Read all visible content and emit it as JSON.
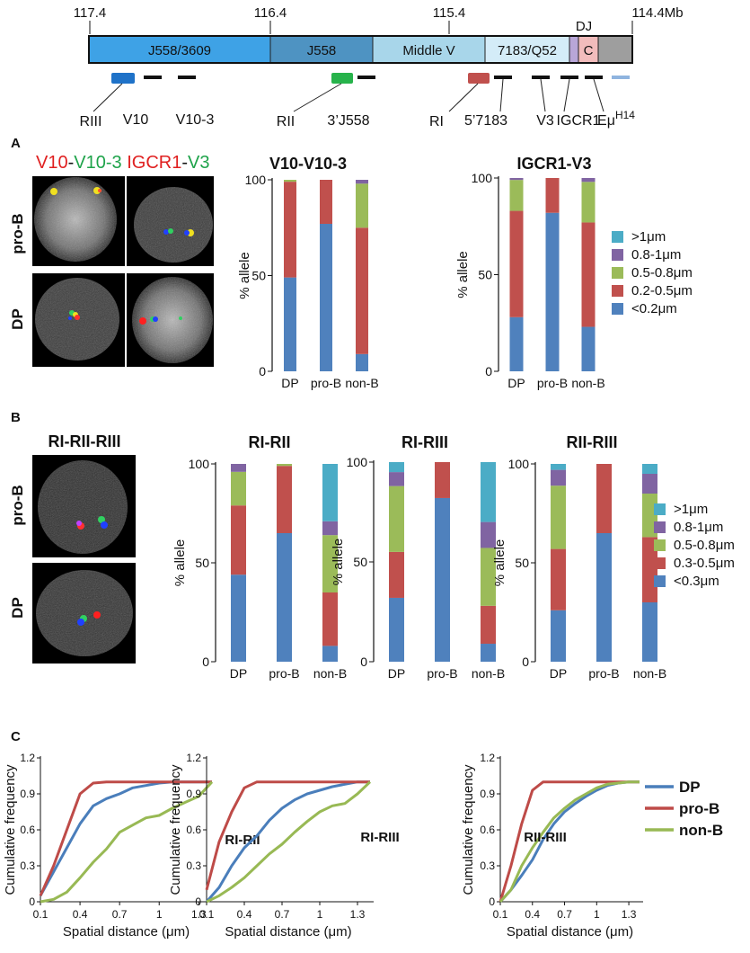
{
  "map": {
    "coords": [
      "117.4",
      "116.4",
      "115.4",
      "114.4Mb"
    ],
    "dj_label": "DJ",
    "segments": [
      {
        "label": "J558/3609",
        "color": "#3ea2e6"
      },
      {
        "label": "J558",
        "color": "#4e93c2"
      },
      {
        "label": "Middle V",
        "color": "#a8d6ea"
      },
      {
        "label": "7183/Q52",
        "color": "#d4ecf8"
      },
      {
        "label": "",
        "color": "#b8a6d8"
      },
      {
        "label": "C",
        "color": "#f2bcbc"
      },
      {
        "label": "",
        "color": "#9e9e9e"
      }
    ],
    "probes": [
      "RIII",
      "V10",
      "V10-3",
      "RII",
      "3’J558",
      "RI",
      "5’7183",
      "V3",
      "IGCR1",
      "Eμ"
    ],
    "h14": "H14"
  },
  "panel_a": {
    "letter": "A",
    "header": {
      "p1": "V10",
      "d1": "-",
      "p2": "V10-3",
      "s": " ",
      "p3": "IGCR1",
      "d2": "-",
      "p4": "V3"
    },
    "rows": [
      "pro-B",
      "DP"
    ],
    "legend": [
      {
        "label": ">1μm",
        "color": "#4bacc6"
      },
      {
        "label": "0.8-1μm",
        "color": "#8064a2"
      },
      {
        "label": "0.5-0.8μm",
        "color": "#9bbb59"
      },
      {
        "label": "0.2-0.5μm",
        "color": "#c0504d"
      },
      {
        "label": "<0.2μm",
        "color": "#4f81bd"
      }
    ]
  },
  "panel_b": {
    "letter": "B",
    "image_title": "RI-RII-RIII",
    "rows": [
      "pro-B",
      "DP"
    ],
    "legend": [
      {
        "label": ">1μm",
        "color": "#4bacc6"
      },
      {
        "label": "0.8-1μm",
        "color": "#8064a2"
      },
      {
        "label": "0.5-0.8μm",
        "color": "#9bbb59"
      },
      {
        "label": "0.3-0.5μm",
        "color": "#c0504d"
      },
      {
        "label": "<0.3μm",
        "color": "#4f81bd"
      }
    ]
  },
  "panel_c": {
    "letter": "C",
    "legend": [
      {
        "label": "DP",
        "color": "#4a7ebb"
      },
      {
        "label": "pro-B",
        "color": "#be4b48"
      },
      {
        "label": "non-B",
        "color": "#98b954"
      }
    ]
  },
  "chart_data": [
    {
      "type": "bar",
      "stacked": true,
      "title": "V10-V10-3",
      "ylabel": "% allele",
      "categories": [
        "DP",
        "pro-B",
        "non-B"
      ],
      "ylim": [
        0,
        100
      ],
      "yticks": [
        0,
        50,
        100
      ],
      "series": [
        {
          "name": "<0.2μm",
          "color": "#4f81bd",
          "values": [
            49,
            77,
            9
          ]
        },
        {
          "name": "0.2-0.5μm",
          "color": "#c0504d",
          "values": [
            50,
            23,
            66
          ]
        },
        {
          "name": "0.5-0.8μm",
          "color": "#9bbb59",
          "values": [
            1,
            0,
            23
          ]
        },
        {
          "name": "0.8-1μm",
          "color": "#8064a2",
          "values": [
            0,
            0,
            2
          ]
        },
        {
          "name": ">1μm",
          "color": "#4bacc6",
          "values": [
            0,
            0,
            0
          ]
        }
      ]
    },
    {
      "type": "bar",
      "stacked": true,
      "title": "IGCR1-V3",
      "ylabel": "% allele",
      "categories": [
        "DP",
        "pro-B",
        "non-B"
      ],
      "ylim": [
        0,
        100
      ],
      "yticks": [
        0,
        50,
        100
      ],
      "series": [
        {
          "name": "<0.2μm",
          "color": "#4f81bd",
          "values": [
            28,
            82,
            23
          ]
        },
        {
          "name": "0.2-0.5μm",
          "color": "#c0504d",
          "values": [
            55,
            18,
            54
          ]
        },
        {
          "name": "0.5-0.8μm",
          "color": "#9bbb59",
          "values": [
            16,
            0,
            21
          ]
        },
        {
          "name": "0.8-1μm",
          "color": "#8064a2",
          "values": [
            1,
            0,
            2
          ]
        },
        {
          "name": ">1μm",
          "color": "#4bacc6",
          "values": [
            0,
            0,
            0
          ]
        }
      ]
    },
    {
      "type": "bar",
      "stacked": true,
      "title": "RI-RII",
      "ylabel": "% allele",
      "categories": [
        "DP",
        "pro-B",
        "non-B"
      ],
      "ylim": [
        0,
        100
      ],
      "yticks": [
        0,
        50,
        100
      ],
      "series": [
        {
          "name": "<0.3μm",
          "color": "#4f81bd",
          "values": [
            44,
            65,
            8
          ]
        },
        {
          "name": "0.3-0.5μm",
          "color": "#c0504d",
          "values": [
            35,
            34,
            27
          ]
        },
        {
          "name": "0.5-0.8μm",
          "color": "#9bbb59",
          "values": [
            17,
            1,
            29
          ]
        },
        {
          "name": "0.8-1μm",
          "color": "#8064a2",
          "values": [
            4,
            0,
            7
          ]
        },
        {
          "name": ">1μm",
          "color": "#4bacc6",
          "values": [
            0,
            0,
            29
          ]
        }
      ]
    },
    {
      "type": "bar",
      "stacked": true,
      "title": "RI-RIII",
      "ylabel": "% allele",
      "categories": [
        "DP",
        "pro-B",
        "non-B"
      ],
      "ylim": [
        0,
        100
      ],
      "yticks": [
        0,
        50,
        100
      ],
      "series": [
        {
          "name": "<0.3μm",
          "color": "#4f81bd",
          "values": [
            32,
            82,
            9
          ]
        },
        {
          "name": "0.3-0.5μm",
          "color": "#c0504d",
          "values": [
            23,
            18,
            19
          ]
        },
        {
          "name": "0.5-0.8μm",
          "color": "#9bbb59",
          "values": [
            33,
            0,
            29
          ]
        },
        {
          "name": "0.8-1μm",
          "color": "#8064a2",
          "values": [
            7,
            0,
            13
          ]
        },
        {
          "name": ">1μm",
          "color": "#4bacc6",
          "values": [
            5,
            0,
            30
          ]
        }
      ]
    },
    {
      "type": "bar",
      "stacked": true,
      "title": "RII-RIII",
      "ylabel": "% allele",
      "categories": [
        "DP",
        "pro-B",
        "non-B"
      ],
      "ylim": [
        0,
        100
      ],
      "yticks": [
        0,
        50,
        100
      ],
      "series": [
        {
          "name": "<0.3μm",
          "color": "#4f81bd",
          "values": [
            26,
            65,
            30
          ]
        },
        {
          "name": "0.3-0.5μm",
          "color": "#c0504d",
          "values": [
            31,
            35,
            33
          ]
        },
        {
          "name": "0.5-0.8μm",
          "color": "#9bbb59",
          "values": [
            32,
            0,
            22
          ]
        },
        {
          "name": "0.8-1μm",
          "color": "#8064a2",
          "values": [
            8,
            0,
            10
          ]
        },
        {
          "name": ">1μm",
          "color": "#4bacc6",
          "values": [
            3,
            0,
            5
          ]
        }
      ]
    },
    {
      "type": "line",
      "annotation": "RI-RII",
      "xlabel": "Spatial distance (μm)",
      "ylabel": "Cumulative frequency",
      "xlim": [
        0.1,
        1.4
      ],
      "ylim": [
        0,
        1.2
      ],
      "xticks": [
        0.1,
        0.4,
        0.7,
        1,
        1.3
      ],
      "yticks": [
        0,
        0.3,
        0.6,
        0.9,
        1.2
      ],
      "series": [
        {
          "name": "DP",
          "color": "#4a7ebb",
          "x": [
            0.1,
            0.2,
            0.3,
            0.4,
            0.5,
            0.6,
            0.7,
            0.8,
            0.9,
            1.0,
            1.1,
            1.2,
            1.3,
            1.4
          ],
          "y": [
            0.05,
            0.25,
            0.45,
            0.65,
            0.8,
            0.86,
            0.9,
            0.95,
            0.97,
            0.99,
            1,
            1,
            1,
            1
          ]
        },
        {
          "name": "pro-B",
          "color": "#be4b48",
          "x": [
            0.1,
            0.2,
            0.3,
            0.4,
            0.5,
            0.6,
            0.7,
            0.8,
            0.9,
            1.0,
            1.1,
            1.2,
            1.3,
            1.4
          ],
          "y": [
            0.05,
            0.3,
            0.6,
            0.9,
            0.99,
            1,
            1,
            1,
            1,
            1,
            1,
            1,
            1,
            1
          ]
        },
        {
          "name": "non-B",
          "color": "#98b954",
          "x": [
            0.1,
            0.2,
            0.3,
            0.4,
            0.5,
            0.6,
            0.7,
            0.8,
            0.9,
            1.0,
            1.1,
            1.2,
            1.3,
            1.4
          ],
          "y": [
            0,
            0.02,
            0.08,
            0.2,
            0.33,
            0.44,
            0.58,
            0.64,
            0.7,
            0.72,
            0.78,
            0.83,
            0.88,
            1.0
          ]
        }
      ]
    },
    {
      "type": "line",
      "annotation": "RI-RIII",
      "xlabel": "Spatial distance (μm)",
      "ylabel": "Cumulative frequency",
      "xlim": [
        0.1,
        1.4
      ],
      "ylim": [
        0,
        1.2
      ],
      "xticks": [
        0.1,
        0.4,
        0.7,
        1,
        1.3
      ],
      "yticks": [
        0,
        0.3,
        0.6,
        0.9,
        1.2
      ],
      "series": [
        {
          "name": "DP",
          "color": "#4a7ebb",
          "x": [
            0.1,
            0.2,
            0.3,
            0.4,
            0.5,
            0.6,
            0.7,
            0.8,
            0.9,
            1.0,
            1.1,
            1.2,
            1.3,
            1.4
          ],
          "y": [
            0,
            0.12,
            0.3,
            0.45,
            0.55,
            0.68,
            0.78,
            0.85,
            0.9,
            0.93,
            0.96,
            0.98,
            1,
            1
          ]
        },
        {
          "name": "pro-B",
          "color": "#be4b48",
          "x": [
            0.1,
            0.2,
            0.3,
            0.4,
            0.5,
            0.6,
            0.7,
            0.8,
            0.9,
            1.0,
            1.1,
            1.2,
            1.3,
            1.4
          ],
          "y": [
            0.1,
            0.5,
            0.75,
            0.95,
            1,
            1,
            1,
            1,
            1,
            1,
            1,
            1,
            1,
            1
          ]
        },
        {
          "name": "non-B",
          "color": "#98b954",
          "x": [
            0.1,
            0.2,
            0.3,
            0.4,
            0.5,
            0.6,
            0.7,
            0.8,
            0.9,
            1.0,
            1.1,
            1.2,
            1.3,
            1.4
          ],
          "y": [
            0,
            0.05,
            0.12,
            0.2,
            0.3,
            0.4,
            0.48,
            0.58,
            0.67,
            0.75,
            0.8,
            0.82,
            0.9,
            1
          ]
        }
      ]
    },
    {
      "type": "line",
      "annotation": "RII-RIII",
      "xlabel": "Spatial distance (μm)",
      "ylabel": "Cumulative frequency",
      "xlim": [
        0.1,
        1.4
      ],
      "ylim": [
        0,
        1.2
      ],
      "xticks": [
        0.1,
        0.4,
        0.7,
        1,
        1.3
      ],
      "yticks": [
        0,
        0.3,
        0.6,
        0.9,
        1.2
      ],
      "series": [
        {
          "name": "DP",
          "color": "#4a7ebb",
          "x": [
            0.1,
            0.2,
            0.3,
            0.4,
            0.5,
            0.6,
            0.7,
            0.8,
            0.9,
            1.0,
            1.1,
            1.2,
            1.3,
            1.4
          ],
          "y": [
            0,
            0.1,
            0.22,
            0.35,
            0.52,
            0.65,
            0.75,
            0.82,
            0.88,
            0.93,
            0.97,
            0.99,
            1,
            1
          ]
        },
        {
          "name": "pro-B",
          "color": "#be4b48",
          "x": [
            0.1,
            0.2,
            0.3,
            0.4,
            0.5,
            0.6,
            0.7,
            0.8,
            0.9,
            1.0,
            1.1,
            1.2,
            1.3,
            1.4
          ],
          "y": [
            0,
            0.3,
            0.65,
            0.93,
            1,
            1,
            1,
            1,
            1,
            1,
            1,
            1,
            1,
            1
          ]
        },
        {
          "name": "non-B",
          "color": "#98b954",
          "x": [
            0.1,
            0.2,
            0.3,
            0.4,
            0.5,
            0.6,
            0.7,
            0.8,
            0.9,
            1.0,
            1.1,
            1.2,
            1.3,
            1.4
          ],
          "y": [
            0,
            0.1,
            0.3,
            0.45,
            0.58,
            0.7,
            0.78,
            0.85,
            0.9,
            0.95,
            0.98,
            0.99,
            1,
            1
          ]
        }
      ]
    }
  ]
}
